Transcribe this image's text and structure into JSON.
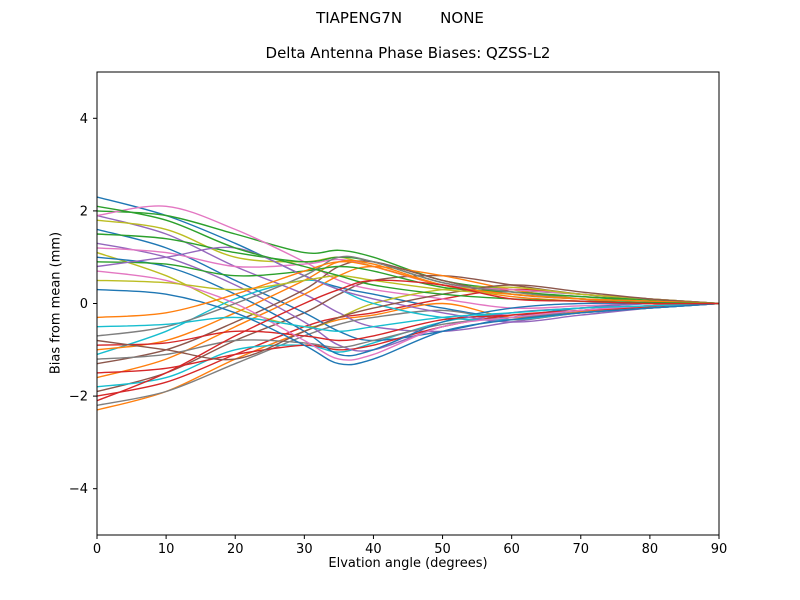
{
  "figure": {
    "suptitle": "TIAPENG7N        NONE",
    "background": "#ffffff"
  },
  "chart_data": {
    "type": "line",
    "title": "Delta Antenna Phase Biases: QZSS-L2",
    "xlabel": "Elvation angle (degrees)",
    "ylabel": "Bias from mean (mm)",
    "xlim": [
      0,
      90
    ],
    "ylim": [
      -5,
      5
    ],
    "x_ticks": [
      0,
      10,
      20,
      30,
      40,
      50,
      60,
      70,
      80,
      90
    ],
    "y_ticks": [
      -4,
      -2,
      0,
      2,
      4
    ],
    "grid": false,
    "legend": "none",
    "axis_color": "#000000",
    "line_width": 1.4,
    "palette": [
      "#1f77b4",
      "#ff7f0e",
      "#2ca02c",
      "#d62728",
      "#9467bd",
      "#8c564b",
      "#e377c2",
      "#7f7f7f",
      "#bcbd22",
      "#17becf"
    ],
    "x": [
      0,
      10,
      20,
      30,
      35,
      40,
      50,
      60,
      70,
      80,
      90
    ],
    "series": [
      {
        "values": [
          2.3,
          1.9,
          1.3,
          0.6,
          0.35,
          0.2,
          -0.1,
          -0.3,
          -0.15,
          -0.05,
          0
        ]
      },
      {
        "values": [
          -2.3,
          -1.9,
          -1.2,
          -0.6,
          -0.35,
          -0.25,
          0.0,
          -0.3,
          -0.18,
          -0.06,
          0
        ]
      },
      {
        "values": [
          2.0,
          1.9,
          1.5,
          1.1,
          1.15,
          1.0,
          0.5,
          0.3,
          0.2,
          0.1,
          0
        ]
      },
      {
        "values": [
          -2.0,
          -1.7,
          -1.1,
          -0.5,
          -0.3,
          -0.2,
          0.1,
          0.3,
          0.2,
          0.08,
          0
        ]
      },
      {
        "values": [
          1.9,
          1.5,
          0.8,
          0.2,
          -0.2,
          -0.5,
          -0.6,
          -0.4,
          -0.2,
          -0.1,
          0
        ]
      },
      {
        "values": [
          -1.9,
          -1.5,
          -0.8,
          -0.2,
          0.2,
          0.5,
          0.6,
          0.4,
          0.2,
          0.1,
          0
        ]
      },
      {
        "values": [
          1.9,
          2.1,
          1.6,
          0.9,
          0.5,
          0.3,
          0.1,
          -0.1,
          -0.05,
          0.0,
          0
        ]
      },
      {
        "values": [
          -2.2,
          -1.9,
          -1.3,
          -0.7,
          -0.45,
          -0.3,
          -0.15,
          -0.35,
          -0.2,
          -0.1,
          0
        ]
      },
      {
        "values": [
          1.8,
          1.6,
          1.0,
          0.9,
          1.0,
          0.8,
          0.4,
          0.2,
          0.1,
          0.05,
          0
        ]
      },
      {
        "values": [
          -1.8,
          -1.6,
          -1.0,
          -0.9,
          -1.05,
          -0.85,
          -0.4,
          -0.2,
          -0.1,
          -0.05,
          0
        ]
      },
      {
        "values": [
          1.6,
          1.2,
          0.5,
          -0.2,
          -0.6,
          -0.8,
          -0.6,
          -0.3,
          -0.1,
          0.0,
          0
        ]
      },
      {
        "values": [
          -1.6,
          -1.2,
          -0.5,
          0.2,
          0.6,
          0.8,
          0.6,
          0.3,
          0.1,
          0.0,
          0
        ]
      },
      {
        "values": [
          1.5,
          1.4,
          1.1,
          0.9,
          1.0,
          0.9,
          0.45,
          0.25,
          0.15,
          0.08,
          0
        ]
      },
      {
        "values": [
          -1.5,
          -1.4,
          -1.1,
          -0.9,
          -1.0,
          -0.9,
          -0.5,
          -0.25,
          -0.15,
          -0.08,
          0
        ]
      },
      {
        "values": [
          1.3,
          1.0,
          0.4,
          -0.4,
          -0.9,
          -1.0,
          -0.5,
          -0.2,
          -0.1,
          0.0,
          0
        ]
      },
      {
        "values": [
          -1.3,
          -1.0,
          -0.4,
          0.3,
          0.8,
          0.9,
          0.5,
          0.2,
          0.1,
          0.05,
          0
        ]
      },
      {
        "values": [
          1.2,
          1.1,
          0.8,
          0.85,
          0.95,
          0.8,
          0.4,
          0.3,
          0.2,
          0.1,
          0
        ]
      },
      {
        "values": [
          -1.2,
          -1.1,
          -0.8,
          -0.85,
          -0.95,
          -0.8,
          -0.45,
          -0.3,
          -0.2,
          -0.1,
          0
        ]
      },
      {
        "values": [
          1.1,
          0.6,
          -0.1,
          -0.5,
          -0.3,
          0.0,
          0.3,
          0.35,
          0.2,
          0.1,
          0
        ]
      },
      {
        "values": [
          -1.1,
          -0.6,
          0.1,
          0.5,
          0.3,
          0.0,
          -0.3,
          -0.35,
          -0.2,
          -0.1,
          0
        ]
      },
      {
        "values": [
          1.0,
          0.8,
          0.2,
          -0.6,
          -1.1,
          -1.0,
          -0.4,
          -0.1,
          0.0,
          0.0,
          0
        ]
      },
      {
        "values": [
          -1.0,
          -0.8,
          -0.2,
          0.5,
          0.9,
          0.85,
          0.4,
          0.15,
          0.05,
          0.0,
          0
        ]
      },
      {
        "values": [
          0.9,
          0.85,
          0.6,
          0.7,
          0.8,
          0.7,
          0.35,
          0.25,
          0.15,
          0.05,
          0
        ]
      },
      {
        "values": [
          -0.9,
          -0.85,
          -0.6,
          -0.7,
          -0.8,
          -0.7,
          -0.35,
          -0.25,
          -0.15,
          -0.05,
          0
        ]
      },
      {
        "values": [
          0.8,
          1.0,
          1.2,
          0.6,
          0.3,
          0.1,
          -0.2,
          -0.4,
          -0.25,
          -0.1,
          0
        ]
      },
      {
        "values": [
          -0.8,
          -1.0,
          -1.2,
          -0.6,
          -0.3,
          -0.1,
          0.2,
          0.4,
          0.25,
          0.1,
          0
        ]
      },
      {
        "values": [
          0.7,
          0.5,
          0.0,
          -0.8,
          -1.2,
          -1.1,
          -0.5,
          -0.3,
          -0.15,
          -0.05,
          0
        ]
      },
      {
        "values": [
          -0.7,
          -0.5,
          0.0,
          0.6,
          1.0,
          0.9,
          0.45,
          0.25,
          0.1,
          0.05,
          0
        ]
      },
      {
        "values": [
          0.5,
          0.45,
          0.3,
          0.5,
          0.6,
          0.5,
          0.3,
          0.2,
          0.1,
          0.05,
          0
        ]
      },
      {
        "values": [
          -0.5,
          -0.45,
          -0.3,
          -0.5,
          -0.6,
          -0.5,
          -0.3,
          -0.2,
          -0.1,
          -0.05,
          0
        ]
      },
      {
        "values": [
          0.3,
          0.2,
          -0.2,
          -0.9,
          -1.3,
          -1.2,
          -0.6,
          -0.35,
          -0.2,
          -0.1,
          0
        ]
      },
      {
        "values": [
          -0.3,
          -0.2,
          0.2,
          0.7,
          0.9,
          0.8,
          0.4,
          0.2,
          0.1,
          0.05,
          0
        ]
      },
      {
        "values": [
          2.1,
          1.8,
          1.2,
          0.8,
          0.6,
          0.4,
          0.2,
          0.1,
          0.05,
          0.02,
          0
        ]
      },
      {
        "values": [
          -2.1,
          -1.5,
          -0.7,
          0.0,
          0.3,
          0.5,
          0.4,
          0.1,
          0.05,
          0.0,
          0
        ]
      }
    ]
  }
}
